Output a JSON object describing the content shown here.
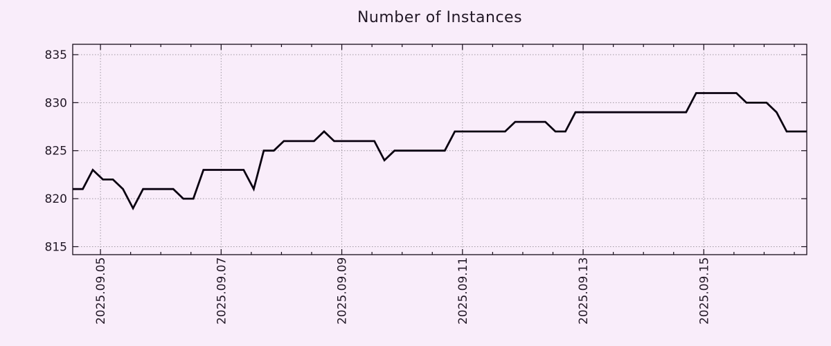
{
  "title": "Number of Instances",
  "colors": {
    "background": "#f9edfa",
    "line": "#0a0110",
    "grid": "#9e97a0",
    "axis": "#150a18",
    "text": "#221826"
  },
  "chart_data": {
    "type": "line",
    "title": "Number of Instances",
    "x_start_estimate": "2025-09-04 12:00",
    "x_step_hours": 4,
    "x_tick_labels": [
      "2025.09.05",
      "2025.09.07",
      "2025.09.09",
      "2025.09.11",
      "2025.09.13",
      "2025.09.15"
    ],
    "x_tick_point_indices": [
      2.76,
      14.76,
      26.76,
      38.76,
      50.76,
      62.76
    ],
    "x_minor_tick_every_points": 3,
    "y_ticks": [
      815,
      820,
      825,
      830,
      835
    ],
    "ylim": [
      814.17,
      836.08
    ],
    "grid": "dotted",
    "legend": "none",
    "series": [
      {
        "name": "Number of Instances",
        "values": [
          821,
          821,
          823,
          822,
          822,
          821,
          819,
          821,
          821,
          821,
          821,
          820,
          820,
          823,
          823,
          823,
          823,
          823,
          821,
          825,
          825,
          826,
          826,
          826,
          826,
          827,
          826,
          826,
          826,
          826,
          826,
          824,
          825,
          825,
          825,
          825,
          825,
          825,
          827,
          827,
          827,
          827,
          827,
          827,
          828,
          828,
          828,
          828,
          827,
          827,
          829,
          829,
          829,
          829,
          829,
          829,
          829,
          829,
          829,
          829,
          829,
          829,
          831,
          831,
          831,
          831,
          831,
          830,
          830,
          830,
          829,
          827,
          827,
          827
        ]
      }
    ]
  }
}
